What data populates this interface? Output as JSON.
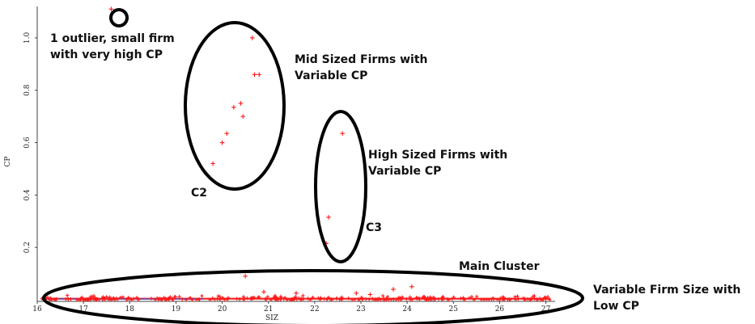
{
  "chart_data": {
    "type": "scatter",
    "xlabel": "SIZ",
    "ylabel": "CP",
    "xlim": [
      16,
      27.2
    ],
    "ylim": [
      0,
      1.12
    ],
    "xticks": [
      16,
      17,
      18,
      19,
      20,
      21,
      22,
      23,
      24,
      25,
      26,
      27
    ],
    "yticks": [
      0.2,
      0.4,
      0.6,
      0.8,
      1.0
    ],
    "xtick_labels": [
      "16",
      "17",
      "18",
      "19",
      "20",
      "21",
      "22",
      "23",
      "24",
      "25",
      "26",
      "27"
    ],
    "ytick_labels": [
      "0.2",
      "0.4",
      "0.6",
      "0.8",
      "1.0"
    ],
    "grid": false,
    "marker_color": "#ff1a1a",
    "highlight_points": [
      {
        "x": 17.6,
        "y": 1.11
      },
      {
        "x": 20.65,
        "y": 1.0
      },
      {
        "x": 20.7,
        "y": 0.86
      },
      {
        "x": 20.8,
        "y": 0.86
      },
      {
        "x": 20.4,
        "y": 0.75
      },
      {
        "x": 20.25,
        "y": 0.735
      },
      {
        "x": 20.45,
        "y": 0.7
      },
      {
        "x": 20.1,
        "y": 0.635
      },
      {
        "x": 20.0,
        "y": 0.6
      },
      {
        "x": 19.8,
        "y": 0.52
      },
      {
        "x": 22.6,
        "y": 0.635
      },
      {
        "x": 22.3,
        "y": 0.315
      },
      {
        "x": 22.25,
        "y": 0.215
      },
      {
        "x": 20.5,
        "y": 0.09
      },
      {
        "x": 24.1,
        "y": 0.05
      },
      {
        "x": 23.7,
        "y": 0.04
      },
      {
        "x": 20.9,
        "y": 0.03
      },
      {
        "x": 22.9,
        "y": 0.025
      },
      {
        "x": 21.6,
        "y": 0.025
      },
      {
        "x": 23.2,
        "y": 0.02
      }
    ],
    "cluster_band": {
      "x_range": [
        16.1,
        27.1
      ],
      "y_range": [
        0.0,
        0.018
      ]
    },
    "annotations": [
      {
        "id": "outlier",
        "lines": [
          "1 outlier, small firm",
          "with very high CP"
        ]
      },
      {
        "id": "mid",
        "lines": [
          "Mid Sized Firms with",
          "Variable CP"
        ]
      },
      {
        "id": "c2",
        "lines": [
          "C2"
        ]
      },
      {
        "id": "high",
        "lines": [
          "High Sized Firms with",
          "Variable CP"
        ]
      },
      {
        "id": "c3",
        "lines": [
          "C3"
        ]
      },
      {
        "id": "main",
        "lines": [
          "Main Cluster"
        ]
      },
      {
        "id": "variable",
        "lines": [
          "Variable Firm Size with",
          "Low CP"
        ]
      }
    ]
  }
}
